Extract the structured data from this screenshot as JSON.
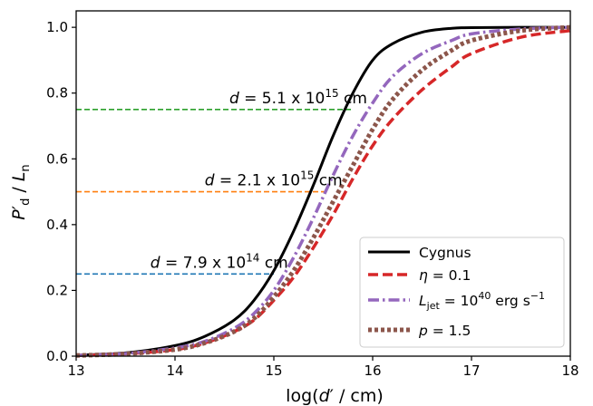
{
  "chart_data": {
    "type": "line",
    "xlabel": "log(d′ / cm)",
    "ylabel": "P′d / Ln",
    "xlim": [
      13,
      18
    ],
    "ylim": [
      0,
      1.05
    ],
    "xticks": [
      13,
      14,
      15,
      16,
      17,
      18
    ],
    "yticks": [
      0.0,
      0.2,
      0.4,
      0.6,
      0.8,
      1.0
    ],
    "xtick_labels": [
      "13",
      "14",
      "15",
      "16",
      "17",
      "18"
    ],
    "ytick_labels": [
      "0.0",
      "0.2",
      "0.4",
      "0.6",
      "0.8",
      "1.0"
    ],
    "grid": false,
    "legend_position": "lower-right",
    "series": [
      {
        "name": "Cygnus",
        "color": "#000000",
        "style": "solid",
        "x": [
          13.0,
          13.5,
          14.0,
          14.3,
          14.6,
          14.8,
          15.0,
          15.2,
          15.4,
          15.6,
          15.8,
          16.0,
          16.2,
          16.5,
          16.8,
          17.0,
          17.5,
          18.0
        ],
        "y": [
          0.003,
          0.01,
          0.032,
          0.06,
          0.11,
          0.17,
          0.26,
          0.38,
          0.52,
          0.67,
          0.8,
          0.9,
          0.95,
          0.985,
          0.997,
          0.999,
          1.0,
          1.0
        ]
      },
      {
        "name": "η = 0.1",
        "color": "#d62728",
        "style": "dashed",
        "x": [
          13.0,
          13.5,
          14.0,
          14.3,
          14.6,
          14.8,
          15.0,
          15.2,
          15.4,
          15.6,
          15.8,
          16.0,
          16.2,
          16.5,
          16.8,
          17.0,
          17.5,
          18.0
        ],
        "y": [
          0.002,
          0.007,
          0.02,
          0.04,
          0.075,
          0.11,
          0.17,
          0.24,
          0.33,
          0.43,
          0.54,
          0.64,
          0.72,
          0.81,
          0.88,
          0.92,
          0.97,
          0.99
        ]
      },
      {
        "name": "L_jet = 10^40 erg s^-1",
        "color": "#9467bd",
        "style": "dashdot",
        "x": [
          13.0,
          13.5,
          14.0,
          14.3,
          14.6,
          14.8,
          15.0,
          15.2,
          15.4,
          15.6,
          15.8,
          16.0,
          16.2,
          16.5,
          16.8,
          17.0,
          17.5,
          18.0
        ],
        "y": [
          0.002,
          0.008,
          0.025,
          0.045,
          0.085,
          0.13,
          0.2,
          0.3,
          0.42,
          0.55,
          0.67,
          0.77,
          0.85,
          0.92,
          0.96,
          0.98,
          0.995,
          1.0
        ]
      },
      {
        "name": "p = 1.5",
        "color": "#8c564b",
        "style": "dotted",
        "x": [
          13.0,
          13.5,
          14.0,
          14.3,
          14.6,
          14.8,
          15.0,
          15.2,
          15.4,
          15.6,
          15.8,
          16.0,
          16.2,
          16.5,
          16.8,
          17.0,
          17.5,
          18.0
        ],
        "y": [
          0.002,
          0.007,
          0.02,
          0.04,
          0.075,
          0.115,
          0.18,
          0.26,
          0.36,
          0.47,
          0.58,
          0.69,
          0.78,
          0.87,
          0.93,
          0.96,
          0.99,
          1.0
        ]
      }
    ],
    "hlines": [
      {
        "y": 0.75,
        "x_end": 15.8,
        "color": "#2ca02c",
        "label": "d = 5.1 x 10^15 cm",
        "label_x": 14.55
      },
      {
        "y": 0.5,
        "x_end": 15.55,
        "color": "#ff7f0e",
        "label": "d = 2.1 x 10^15 cm",
        "label_x": 14.3
      },
      {
        "y": 0.25,
        "x_end": 15.0,
        "color": "#1f77b4",
        "label": "d = 7.9 x 10^14 cm",
        "label_x": 13.75
      }
    ]
  },
  "text": {
    "hline_labels": [
      {
        "d": "d",
        "eq": " = 5.1 x 10",
        "exp": "15",
        "unit": " cm"
      },
      {
        "d": "d",
        "eq": " = 2.1 x 10",
        "exp": "15",
        "unit": " cm"
      },
      {
        "d": "d",
        "eq": " = 7.9 x 10",
        "exp": "14",
        "unit": " cm"
      }
    ],
    "legend": [
      {
        "main": "Cygnus"
      },
      {
        "sym": "η",
        "rest": " = 0.1"
      },
      {
        "sym": "L",
        "sub": "jet",
        "mid": " = 10",
        "sup": "40",
        "unit": " erg s",
        "unitsup": "−1"
      },
      {
        "sym": "p",
        "rest": " = 1.5"
      }
    ],
    "xlabel": {
      "pre": "log(",
      "var": "d",
      "prime": "′",
      "post": " / cm)"
    },
    "ylabel": {
      "var": "P",
      "prime": "′",
      "sub": "d",
      "slash": " / ",
      "var2": "L",
      "sub2": "n"
    }
  }
}
